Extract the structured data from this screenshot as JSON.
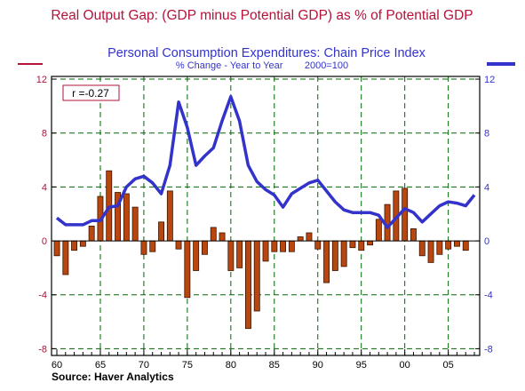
{
  "chart_data": {
    "type": "bar",
    "title": "Real Output Gap: (GDP minus Potential GDP) as % of Potential GDP",
    "subtitle": "Personal Consumption Expenditures: Chain Price Index",
    "subtitle_note": "% Change - Year to Year        2000=100",
    "annotation": "r =-0.27",
    "source": "Source: Haver Analytics",
    "grid": true,
    "xlim": [
      1960,
      2008
    ],
    "x_tick_labels": [
      "60",
      "65",
      "70",
      "75",
      "80",
      "85",
      "90",
      "95",
      "00",
      "05"
    ],
    "left_axis": {
      "ylim": [
        -8.5,
        12.2
      ],
      "ticks": [
        "12",
        "8",
        "4",
        "0",
        "-4",
        "-8"
      ]
    },
    "right_axis": {
      "ylim": [
        -8.5,
        12.2
      ],
      "ticks": [
        "12",
        "8",
        "4",
        "0",
        "-4",
        "-8"
      ]
    },
    "colors": {
      "bars": "#b8460e",
      "bar_edge": "#3a1500",
      "line": "#3333cc",
      "title": "#b5123a",
      "subtitle": "#3333cc",
      "grid": "#006600"
    },
    "series": [
      {
        "type": "bar",
        "axis": "left",
        "x": [
          1960,
          1961,
          1962,
          1963,
          1964,
          1965,
          1966,
          1967,
          1968,
          1969,
          1970,
          1971,
          1972,
          1973,
          1974,
          1975,
          1976,
          1977,
          1978,
          1979,
          1980,
          1981,
          1982,
          1983,
          1984,
          1985,
          1986,
          1987,
          1988,
          1989,
          1990,
          1991,
          1992,
          1993,
          1994,
          1995,
          1996,
          1997,
          1998,
          1999,
          2000,
          2001,
          2002,
          2003,
          2004,
          2005,
          2006,
          2007
        ],
        "values": [
          -1.1,
          -2.5,
          -0.7,
          -0.4,
          1.1,
          3.3,
          5.2,
          3.6,
          3.5,
          2.5,
          -1.0,
          -0.8,
          1.4,
          3.7,
          -0.6,
          -4.2,
          -2.2,
          -1.0,
          1.0,
          0.6,
          -2.2,
          -2.0,
          -6.5,
          -5.2,
          -1.5,
          -0.8,
          -0.8,
          -0.8,
          0.3,
          0.6,
          -0.6,
          -3.1,
          -2.2,
          -1.9,
          -0.5,
          -0.7,
          -0.3,
          1.6,
          2.7,
          3.7,
          3.9,
          0.9,
          -1.1,
          -1.6,
          -1.0,
          -0.6,
          -0.4,
          -0.7
        ]
      },
      {
        "type": "line",
        "axis": "right",
        "x": [
          1960,
          1961,
          1962,
          1963,
          1964,
          1965,
          1966,
          1967,
          1968,
          1969,
          1970,
          1971,
          1972,
          1973,
          1974,
          1975,
          1976,
          1977,
          1978,
          1979,
          1980,
          1981,
          1982,
          1983,
          1984,
          1985,
          1986,
          1987,
          1988,
          1989,
          1990,
          1991,
          1992,
          1993,
          1994,
          1995,
          1996,
          1997,
          1998,
          1999,
          2000,
          2001,
          2002,
          2003,
          2004,
          2005,
          2006,
          2007,
          2008
        ],
        "values": [
          1.7,
          1.2,
          1.2,
          1.2,
          1.5,
          1.5,
          2.5,
          2.6,
          4.0,
          4.6,
          4.8,
          4.3,
          3.5,
          5.6,
          10.3,
          8.4,
          5.6,
          6.3,
          6.9,
          8.9,
          10.7,
          8.9,
          5.6,
          4.4,
          3.8,
          3.4,
          2.5,
          3.5,
          3.9,
          4.3,
          4.5,
          3.7,
          2.9,
          2.3,
          2.1,
          2.1,
          2.1,
          1.9,
          1.0,
          1.7,
          2.4,
          2.1,
          1.4,
          2.0,
          2.6,
          2.9,
          2.8,
          2.6,
          3.4
        ]
      }
    ]
  }
}
